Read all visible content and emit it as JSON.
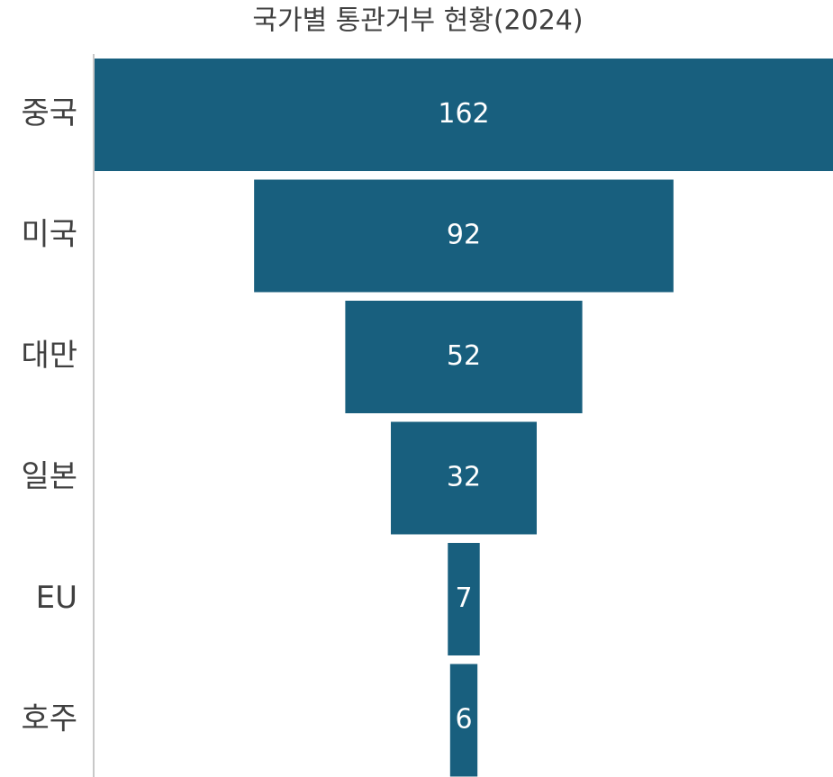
{
  "chart_data": {
    "type": "funnel",
    "title": "국가별 통관거부 현황(2024)",
    "categories": [
      "중국",
      "미국",
      "대만",
      "일본",
      "EU",
      "호주"
    ],
    "values": [
      162,
      92,
      52,
      32,
      7,
      6
    ],
    "color": "#185f7e"
  }
}
